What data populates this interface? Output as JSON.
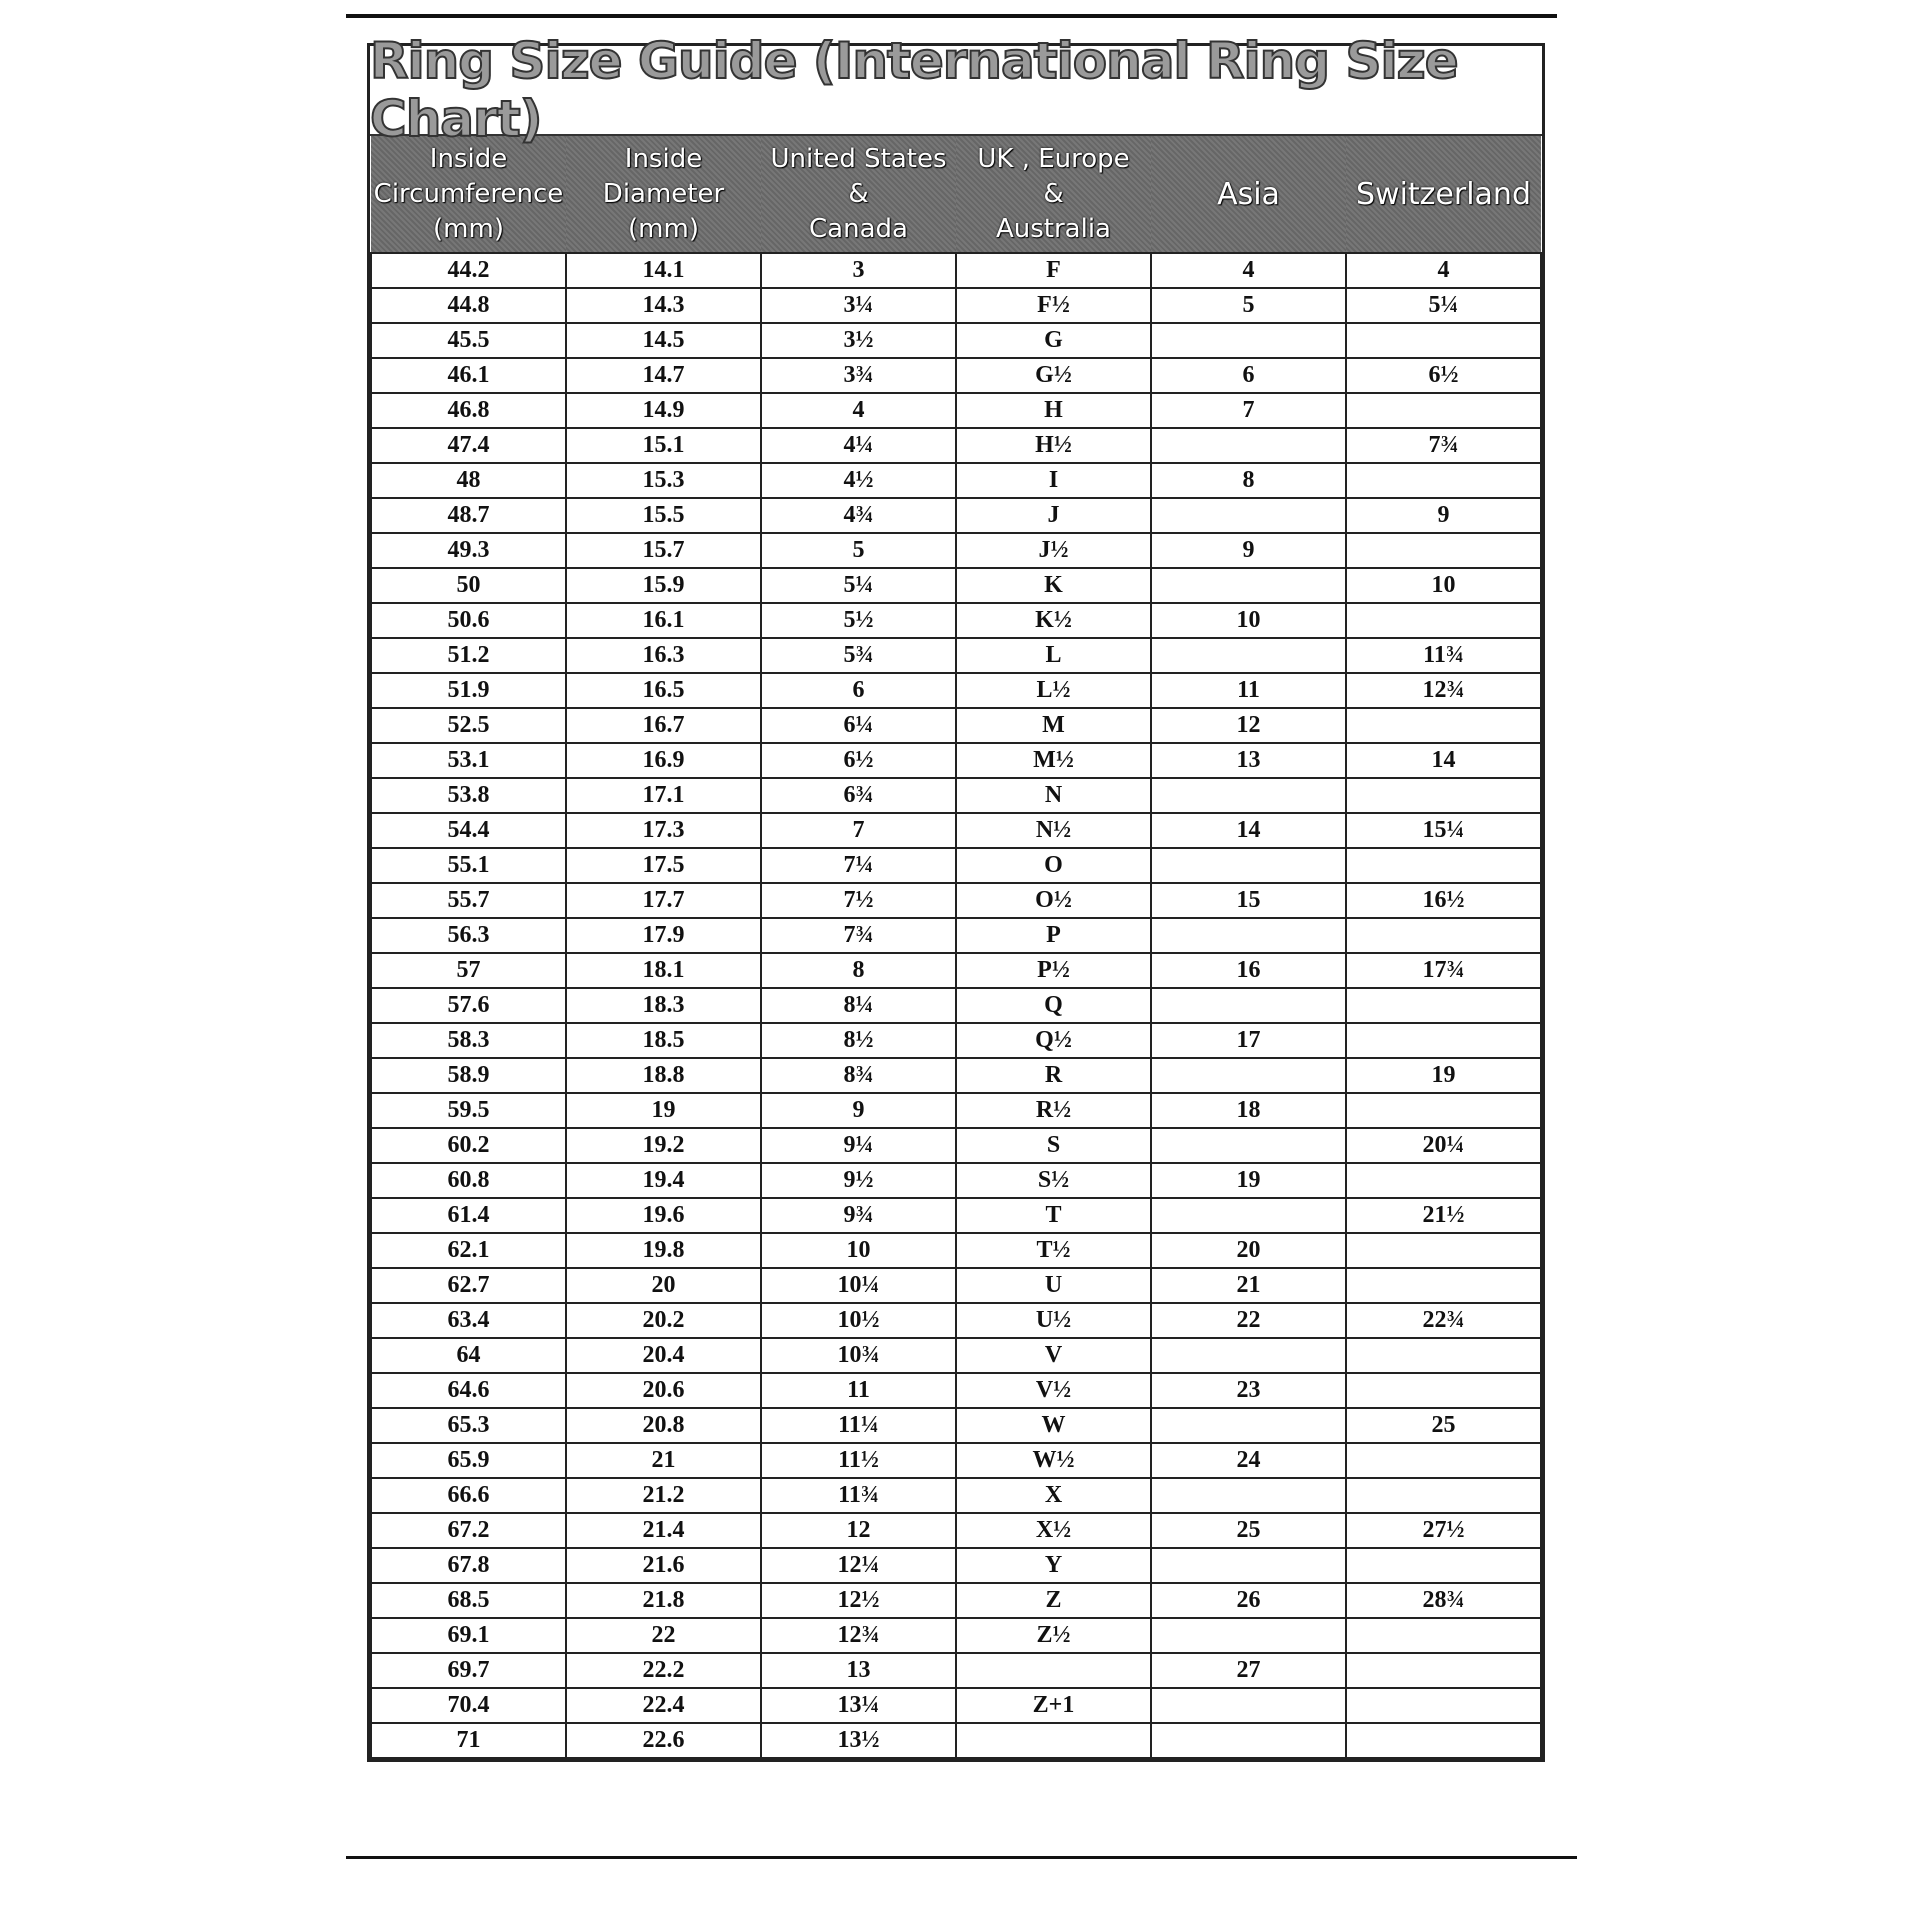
{
  "title": "Ring  Size  Guide (International Ring Size Chart)",
  "headers": [
    [
      "Inside",
      "Circumference",
      "(mm)"
    ],
    [
      "Inside",
      "Diameter",
      "(mm)"
    ],
    [
      "United States",
      "&",
      "Canada"
    ],
    [
      "UK , Europe",
      "&",
      "Australia"
    ],
    [
      "Asia"
    ],
    [
      "Switzerland"
    ]
  ],
  "rows": [
    [
      "44.2",
      "14.1",
      "3",
      "F",
      "4",
      "4"
    ],
    [
      "44.8",
      "14.3",
      "3¼",
      "F½",
      "5",
      "5¼"
    ],
    [
      "45.5",
      "14.5",
      "3½",
      "G",
      "",
      ""
    ],
    [
      "46.1",
      "14.7",
      "3¾",
      "G½",
      "6",
      "6½"
    ],
    [
      "46.8",
      "14.9",
      "4",
      "H",
      "7",
      ""
    ],
    [
      "47.4",
      "15.1",
      "4¼",
      "H½",
      "",
      "7¾"
    ],
    [
      "48",
      "15.3",
      "4½",
      "I",
      "8",
      ""
    ],
    [
      "48.7",
      "15.5",
      "4¾",
      "J",
      "",
      "9"
    ],
    [
      "49.3",
      "15.7",
      "5",
      "J½",
      "9",
      ""
    ],
    [
      "50",
      "15.9",
      "5¼",
      "K",
      "",
      "10"
    ],
    [
      "50.6",
      "16.1",
      "5½",
      "K½",
      "10",
      ""
    ],
    [
      "51.2",
      "16.3",
      "5¾",
      "L",
      "",
      "11¾"
    ],
    [
      "51.9",
      "16.5",
      "6",
      "L½",
      "11",
      "12¾"
    ],
    [
      "52.5",
      "16.7",
      "6¼",
      "M",
      "12",
      ""
    ],
    [
      "53.1",
      "16.9",
      "6½",
      "M½",
      "13",
      "14"
    ],
    [
      "53.8",
      "17.1",
      "6¾",
      "N",
      "",
      ""
    ],
    [
      "54.4",
      "17.3",
      "7",
      "N½",
      "14",
      "15¼"
    ],
    [
      "55.1",
      "17.5",
      "7¼",
      "O",
      "",
      ""
    ],
    [
      "55.7",
      "17.7",
      "7½",
      "O½",
      "15",
      "16½"
    ],
    [
      "56.3",
      "17.9",
      "7¾",
      "P",
      "",
      ""
    ],
    [
      "57",
      "18.1",
      "8",
      "P½",
      "16",
      "17¾"
    ],
    [
      "57.6",
      "18.3",
      "8¼",
      "Q",
      "",
      ""
    ],
    [
      "58.3",
      "18.5",
      "8½",
      "Q½",
      "17",
      ""
    ],
    [
      "58.9",
      "18.8",
      "8¾",
      "R",
      "",
      "19"
    ],
    [
      "59.5",
      "19",
      "9",
      "R½",
      "18",
      ""
    ],
    [
      "60.2",
      "19.2",
      "9¼",
      "S",
      "",
      "20¼"
    ],
    [
      "60.8",
      "19.4",
      "9½",
      "S½",
      "19",
      ""
    ],
    [
      "61.4",
      "19.6",
      "9¾",
      "T",
      "",
      "21½"
    ],
    [
      "62.1",
      "19.8",
      "10",
      "T½",
      "20",
      ""
    ],
    [
      "62.7",
      "20",
      "10¼",
      "U",
      "21",
      ""
    ],
    [
      "63.4",
      "20.2",
      "10½",
      "U½",
      "22",
      "22¾"
    ],
    [
      "64",
      "20.4",
      "10¾",
      "V",
      "",
      ""
    ],
    [
      "64.6",
      "20.6",
      "11",
      "V½",
      "23",
      ""
    ],
    [
      "65.3",
      "20.8",
      "11¼",
      "W",
      "",
      "25"
    ],
    [
      "65.9",
      "21",
      "11½",
      "W½",
      "24",
      ""
    ],
    [
      "66.6",
      "21.2",
      "11¾",
      "X",
      "",
      ""
    ],
    [
      "67.2",
      "21.4",
      "12",
      "X½",
      "25",
      "27½"
    ],
    [
      "67.8",
      "21.6",
      "12¼",
      "Y",
      "",
      ""
    ],
    [
      "68.5",
      "21.8",
      "12½",
      "Z",
      "26",
      "28¾"
    ],
    [
      "69.1",
      "22",
      "12¾",
      "Z½",
      "",
      ""
    ],
    [
      "69.7",
      "22.2",
      "13",
      "",
      "27",
      ""
    ],
    [
      "70.4",
      "22.4",
      "13¼",
      "Z+1",
      "",
      ""
    ],
    [
      "71",
      "22.6",
      "13½",
      "",
      "",
      ""
    ]
  ]
}
